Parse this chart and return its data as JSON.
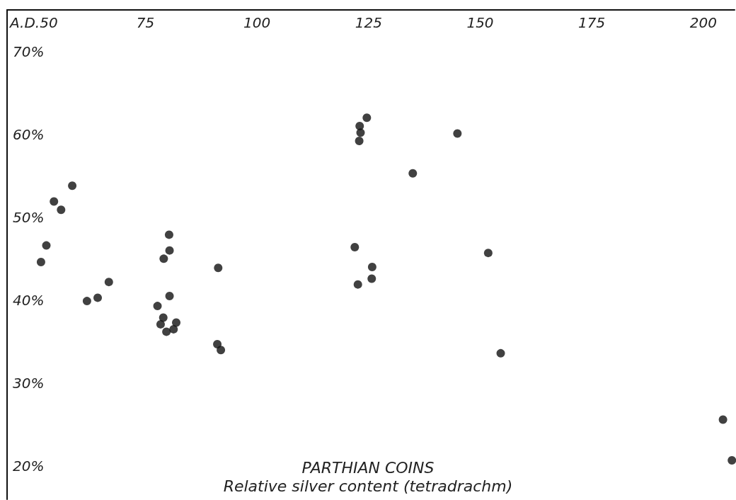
{
  "chart_data": {
    "type": "scatter",
    "title": "PARTHIAN COINS",
    "subtitle": "Relative silver content (tetradrachm)",
    "x": [
      58.6,
      54.5,
      56.1,
      52.8,
      51.6,
      61.9,
      64.3,
      66.8,
      80.3,
      80.4,
      79.1,
      80.4,
      77.7,
      79.0,
      78.4,
      79.7,
      81.3,
      81.9,
      91.3,
      91.1,
      91.9,
      121.9,
      125.8,
      125.7,
      122.6,
      122.9,
      123.2,
      123.0,
      124.6,
      144.9,
      134.9,
      151.8,
      154.6,
      204.4,
      206.4
    ],
    "values": [
      53.8,
      51.9,
      50.9,
      46.6,
      44.6,
      39.9,
      40.3,
      42.2,
      47.9,
      46.0,
      45.0,
      40.5,
      39.3,
      37.9,
      37.1,
      36.2,
      36.5,
      37.3,
      43.9,
      34.7,
      34.0,
      46.4,
      44.0,
      42.6,
      41.9,
      59.2,
      60.2,
      61.0,
      62.0,
      60.1,
      55.3,
      45.7,
      33.6,
      25.6,
      20.7
    ],
    "color": "#111111",
    "marker": "circle",
    "xlim": [
      44,
      207
    ],
    "xticks": [
      {
        "value": 50,
        "label": "A.D.50"
      },
      75,
      100,
      125,
      150,
      175,
      200
    ],
    "ylim": [
      16,
      75
    ],
    "yticks": [
      {
        "value": 20,
        "label": "20%"
      },
      {
        "value": 30,
        "label": "30%"
      },
      {
        "value": 40,
        "label": "40%"
      },
      {
        "value": 50,
        "label": "50%"
      },
      {
        "value": 60,
        "label": "60%"
      },
      {
        "value": 70,
        "label": "70%"
      }
    ],
    "grid": false
  }
}
